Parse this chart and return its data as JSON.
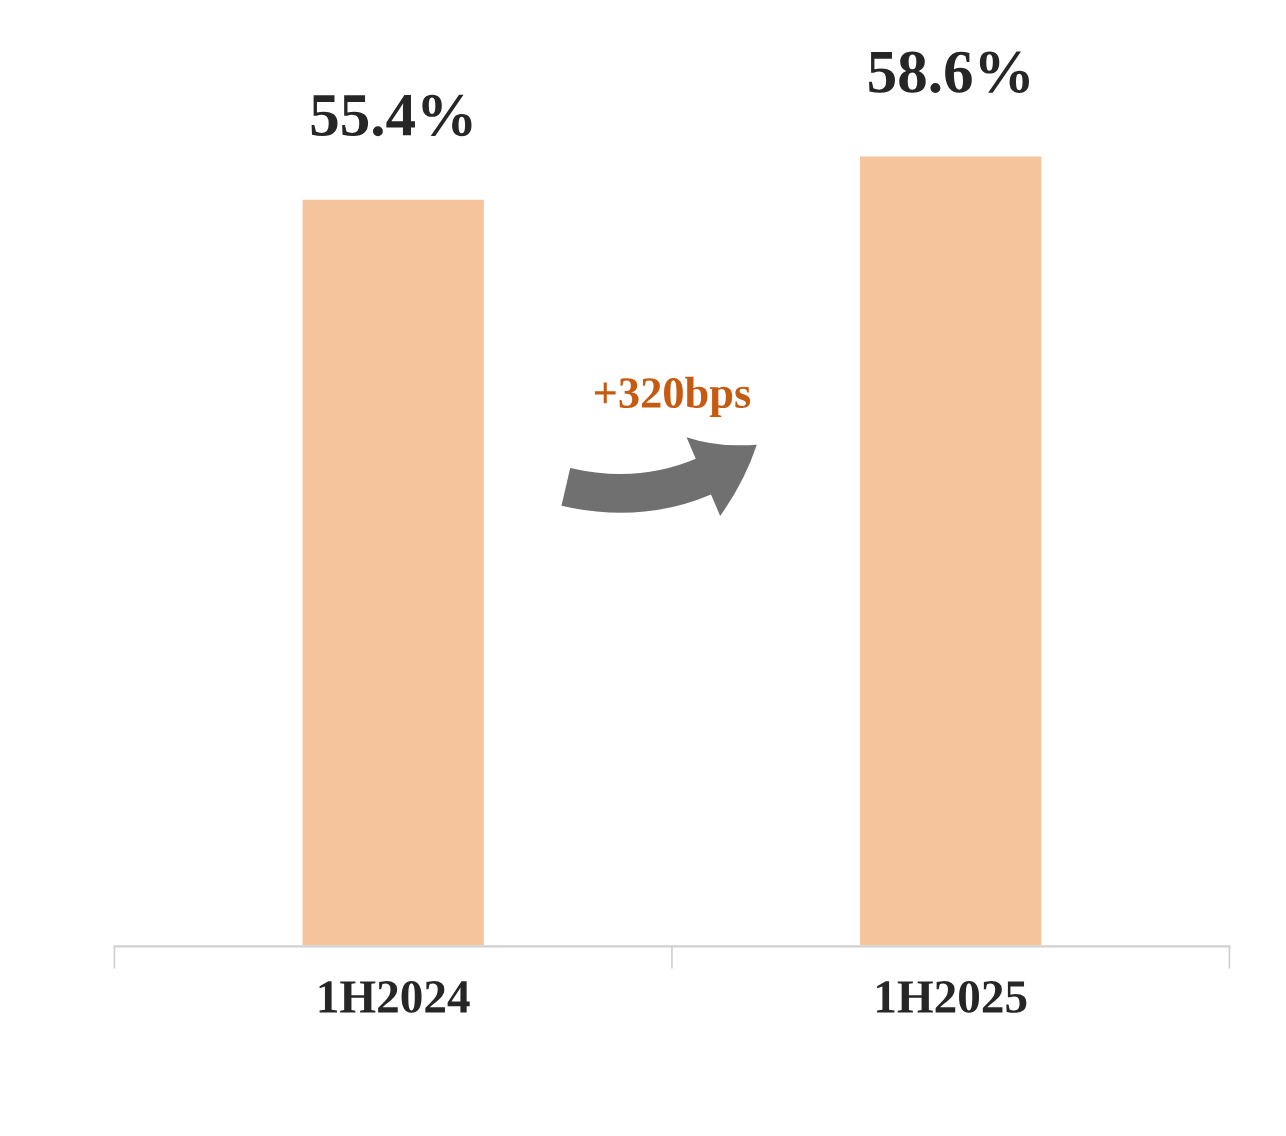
{
  "chart_data": {
    "type": "bar",
    "categories": [
      "1H2024",
      "1H2025"
    ],
    "values": [
      55.4,
      58.6
    ],
    "value_labels": [
      "55.4%",
      "58.6%"
    ],
    "color": "#f5c49c",
    "tick_labels": "x",
    "grid": false,
    "legend": false,
    "annotations": [
      "+320bps"
    ]
  }
}
